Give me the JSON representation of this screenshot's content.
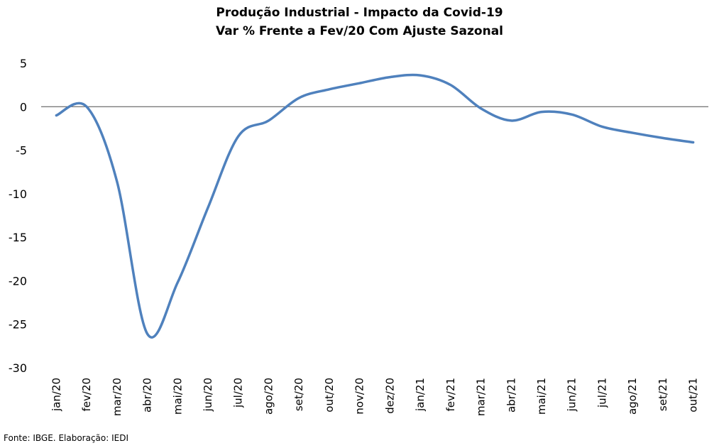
{
  "chart_data": {
    "type": "line",
    "title": "Produção Industrial - Impacto da Covid-19",
    "subtitle": "Var % Frente a Fev/20 Com Ajuste Sazonal",
    "xlabel": "",
    "ylabel": "",
    "categories": [
      "jan/20",
      "fev/20",
      "mar/20",
      "abr/20",
      "mai/20",
      "jun/20",
      "jul/20",
      "ago/20",
      "set/20",
      "out/20",
      "nov/20",
      "dez/20",
      "jan/21",
      "fev/21",
      "mar/21",
      "abr/21",
      "mai/21",
      "jun/21",
      "jul/21",
      "ago/21",
      "set/21",
      "out/21"
    ],
    "series": [
      {
        "name": "",
        "values": [
          -1.0,
          0.0,
          -8.6,
          -26.1,
          -20.2,
          -11.6,
          -3.4,
          -1.6,
          1.0,
          2.0,
          2.7,
          3.4,
          3.6,
          2.5,
          -0.2,
          -1.6,
          -0.6,
          -0.9,
          -2.3,
          -3.0,
          -3.6,
          -4.1
        ]
      }
    ],
    "ylim": [
      -30,
      5
    ],
    "yticks": [
      5,
      0,
      -5,
      -10,
      -15,
      -20,
      -25,
      -30
    ],
    "zero_line": true,
    "grid": false,
    "legend": "none",
    "line_color": "#4F81BD"
  },
  "footer": {
    "source": "Fonte: IBGE. Elaboração: IEDI"
  }
}
